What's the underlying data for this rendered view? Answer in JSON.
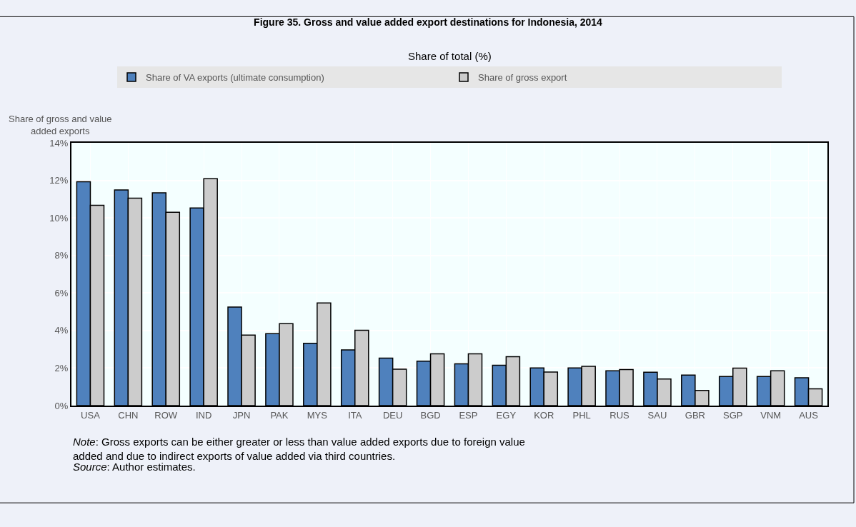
{
  "chart_data": {
    "type": "bar",
    "title": "Figure 35. Gross and value added export destinations for Indonesia, 2014",
    "subtitle": "Share of total (%)",
    "ylabel": "Share of gross and value added exports",
    "categories": [
      "USA",
      "CHN",
      "ROW",
      "IND",
      "JPN",
      "PAK",
      "MYS",
      "ITA",
      "DEU",
      "BGD",
      "ESP",
      "EGY",
      "KOR",
      "PHL",
      "RUS",
      "SAU",
      "GBR",
      "SGP",
      "VNM",
      "AUS"
    ],
    "series": [
      {
        "name": "Share of VA exports (ultimate consumption)",
        "color": "#4f81bd",
        "values": [
          11.93,
          11.49,
          11.34,
          10.53,
          5.25,
          3.83,
          3.32,
          2.97,
          2.53,
          2.37,
          2.23,
          2.15,
          2.01,
          2.01,
          1.85,
          1.78,
          1.63,
          1.55,
          1.55,
          1.48
        ]
      },
      {
        "name": "Share of gross export",
        "color": "#cccccc",
        "values": [
          10.67,
          11.05,
          10.3,
          12.09,
          3.76,
          4.37,
          5.47,
          4.01,
          1.94,
          2.76,
          2.76,
          2.61,
          1.79,
          2.09,
          1.92,
          1.42,
          0.81,
          2.0,
          1.85,
          0.89
        ]
      }
    ],
    "ylim": [
      0,
      14
    ],
    "yticks": [
      {
        "value": 0,
        "label": "0%"
      },
      {
        "value": 2,
        "label": "2%"
      },
      {
        "value": 4,
        "label": "4%"
      },
      {
        "value": 6,
        "label": "6%"
      },
      {
        "value": 8,
        "label": "8%"
      },
      {
        "value": 10,
        "label": "10%"
      },
      {
        "value": 12,
        "label": "12%"
      },
      {
        "value": 14,
        "label": "14%"
      }
    ],
    "grid": true,
    "legend": "top",
    "annotations": [
      "Note: Gross exports can be either greater or less than value added exports due to foreign value added and due to indirect exports of value added via third countries.",
      "Source: Author estimates."
    ]
  }
}
